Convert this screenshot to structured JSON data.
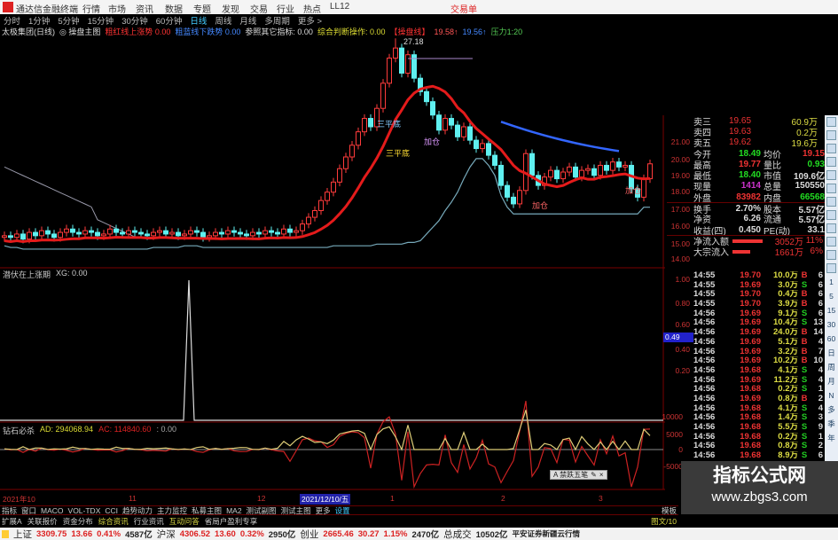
{
  "app": {
    "title": "通达信金融终端",
    "menu": [
      "行情",
      "市场",
      "资讯",
      "数据",
      "专题",
      "发现",
      "交易",
      "行业",
      "热点",
      "LL12"
    ],
    "trade_link": "交易单"
  },
  "periods": {
    "items": [
      "分时",
      "1分钟",
      "5分钟",
      "15分钟",
      "30分钟",
      "60分钟",
      "日线",
      "周线",
      "月线",
      "多周期",
      "更多 >"
    ],
    "active": "日线"
  },
  "info": {
    "stock": "太极集团(日线)",
    "formula": "◎ 操盘主图",
    "f1": "粗红线上涨势 0.00",
    "f2": "粗蓝线下跌势 0.00",
    "f3": "参照其它指标: 0.00",
    "f4": "综合判断操作: 0.00",
    "f5": "【操盘线】",
    "f6": "19.58↑",
    "f7": "19.56↑",
    "f8": "压力1:20"
  },
  "main_chart": {
    "peak_label": "27.18",
    "labels": [
      "三平底",
      "三平底",
      "加仓",
      "加仓",
      "加仓"
    ],
    "price_axis": [
      "21.00",
      "20.00",
      "19.00",
      "18.00",
      "17.00",
      "16.00",
      "15.00",
      "14.00"
    ],
    "close": [
      15.4,
      15.3,
      15.5,
      15.2,
      15.6,
      15.4,
      15.7,
      15.5,
      15.3,
      15.6,
      15.8,
      15.6,
      15.5,
      15.7,
      15.6,
      15.4,
      15.5,
      15.8,
      15.6,
      15.5,
      15.7,
      15.6,
      15.5,
      15.4,
      15.6,
      15.7,
      15.5,
      15.6,
      15.4,
      15.5,
      15.7,
      15.6,
      15.3,
      15.4,
      15.6,
      15.5,
      15.7,
      15.6,
      15.5,
      15.4,
      15.6,
      15.5,
      15.7,
      15.6,
      15.5,
      15.8,
      15.6,
      15.7,
      16.1,
      16.5,
      16.9,
      17.5,
      18.0,
      18.6,
      19.4,
      20.1,
      20.8,
      21.6,
      22.4,
      21.9,
      23.0,
      24.5,
      26.0,
      26.6,
      25.1,
      26.2,
      24.8,
      24.0,
      23.4,
      22.6,
      21.7,
      22.4,
      22.0,
      21.3,
      21.9,
      21.1,
      20.6,
      20.9,
      20.2,
      19.6,
      18.4,
      17.7,
      17.3,
      18.1,
      20.3,
      19.0,
      18.4,
      18.9,
      19.3,
      18.8,
      19.2,
      19.5,
      18.9,
      19.3,
      19.4,
      19.0,
      19.6,
      19.3,
      19.8,
      19.5,
      19.6,
      18.2,
      17.7,
      18.8,
      19.69
    ]
  },
  "pane2": {
    "title": "潜伏在上涨期",
    "value": "XG: 0.00",
    "axis": [
      "1.00",
      "0.80",
      "0.60",
      "0.40",
      "0.20"
    ],
    "cursor_value": "0.49"
  },
  "pane3": {
    "title": "钻石必杀",
    "ad": "AD: 294068.94",
    "ac": "AC: 114840.60",
    "third": ": 0.00",
    "axis": [
      "10000",
      "5000",
      "0",
      "-5000"
    ]
  },
  "toolbox": {
    "label": "A 禁跌五笔"
  },
  "quote": {
    "asks": [
      {
        "label": "卖三",
        "price": "19.65",
        "vol": "60.9万"
      },
      {
        "label": "卖四",
        "price": "19.63",
        "vol": "0.2万"
      },
      {
        "label": "卖五",
        "price": "19.62",
        "vol": "19.6万"
      }
    ],
    "stats": [
      [
        "今开",
        "18.49",
        "均价",
        "19.15"
      ],
      [
        "最高",
        "19.77",
        "量比",
        "0.93"
      ],
      [
        "最低",
        "18.40",
        "市值",
        "109.6亿"
      ],
      [
        "现量",
        "1414",
        "总量",
        "150550"
      ],
      [
        "外盘",
        "83982",
        "内盘",
        "66568"
      ],
      [
        "换手",
        "2.70%",
        "股本",
        "5.57亿"
      ],
      [
        "净资",
        "6.26",
        "流通",
        "5.57亿"
      ],
      [
        "收益(四)",
        "0.450",
        "PE(动)",
        "33.1"
      ]
    ],
    "flows": [
      {
        "label": "净流入额",
        "value": "3052万",
        "pct": "11%"
      },
      {
        "label": "大宗流入",
        "value": "1661万",
        "pct": "6%"
      }
    ]
  },
  "trades": [
    [
      "14:55",
      "19.70",
      "10.0万",
      "B",
      "6"
    ],
    [
      "14:55",
      "19.69",
      "3.0万",
      "S",
      "6"
    ],
    [
      "14:55",
      "19.70",
      "0.4万",
      "B",
      "6"
    ],
    [
      "14:55",
      "19.70",
      "3.9万",
      "B",
      "6"
    ],
    [
      "14:56",
      "19.69",
      "9.1万",
      "S",
      "6"
    ],
    [
      "14:56",
      "19.69",
      "10.4万",
      "S",
      "13"
    ],
    [
      "14:56",
      "19.69",
      "24.0万",
      "B",
      "14"
    ],
    [
      "14:56",
      "19.69",
      "5.1万",
      "B",
      "4"
    ],
    [
      "14:56",
      "19.69",
      "3.2万",
      "B",
      "7"
    ],
    [
      "14:56",
      "19.69",
      "10.2万",
      "B",
      "10"
    ],
    [
      "14:56",
      "19.68",
      "4.1万",
      "S",
      "4"
    ],
    [
      "14:56",
      "19.69",
      "11.2万",
      "S",
      "4"
    ],
    [
      "14:56",
      "19.68",
      "0.2万",
      "S",
      "1"
    ],
    [
      "14:56",
      "19.69",
      "0.8万",
      "B",
      "2"
    ],
    [
      "14:56",
      "19.68",
      "4.1万",
      "S",
      "4"
    ],
    [
      "14:56",
      "19.68",
      "1.4万",
      "S",
      "3"
    ],
    [
      "14:56",
      "19.68",
      "5.5万",
      "S",
      "9"
    ],
    [
      "14:56",
      "19.68",
      "0.2万",
      "S",
      "1"
    ],
    [
      "14:56",
      "19.68",
      "0.8万",
      "S",
      "2"
    ],
    [
      "14:56",
      "19.68",
      "8.9万",
      "S",
      "6"
    ]
  ],
  "period_strip": [
    "1",
    "5",
    "15",
    "30",
    "60",
    "日",
    "周",
    "月",
    "N",
    "多",
    "季",
    "年"
  ],
  "date_axis": [
    "2021年10",
    "11",
    "12",
    "2021/12/10/五",
    "1",
    "2",
    "3"
  ],
  "tabs1": {
    "items": [
      "指标",
      "窗口",
      "MACO",
      "VOL-TDX",
      "CCI",
      "趋势动力",
      "主力监控",
      "私募主图",
      "MA2",
      "测试副图",
      "测试主图",
      "更多",
      "设置"
    ],
    "right": "模板"
  },
  "tabs2": {
    "items": [
      "扩展A",
      "关联报价",
      "资金分布",
      "综合资讯",
      "行业资讯",
      "互动问答",
      "省局户盈利专享"
    ],
    "right": "图文/10"
  },
  "status": [
    {
      "name": "上证",
      "v": "3309.75",
      "c": "13.66",
      "p": "0.41%",
      "a": "4587亿"
    },
    {
      "name": "沪深",
      "v": "4306.52",
      "c": "13.60",
      "p": "0.32%",
      "a": "2950亿"
    },
    {
      "name": "创业",
      "v": "2665.46",
      "c": "30.27",
      "p": "1.15%",
      "a": "2470亿"
    }
  ],
  "status_total": {
    "label": "总成交",
    "value": "10502亿",
    "broker": "平安证券新疆云行情"
  },
  "watermark": {
    "title": "指标公式网",
    "url": "www.zbgs3.com"
  },
  "colors": {
    "up": "#ff3b3b",
    "down": "#5ff0f0",
    "ma": "#e41b1b",
    "bg": "#000000",
    "grid": "#7a0000"
  }
}
